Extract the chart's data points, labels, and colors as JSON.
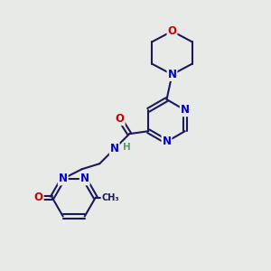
{
  "background_color": "#e8eae8",
  "bond_color": "#1a1a5a",
  "atom_colors": {
    "N": "#0000cc",
    "O": "#cc0000",
    "H": "#5a9a6a",
    "C": "#1a1a5a"
  },
  "figsize": [
    3.0,
    3.0
  ],
  "dpi": 100
}
